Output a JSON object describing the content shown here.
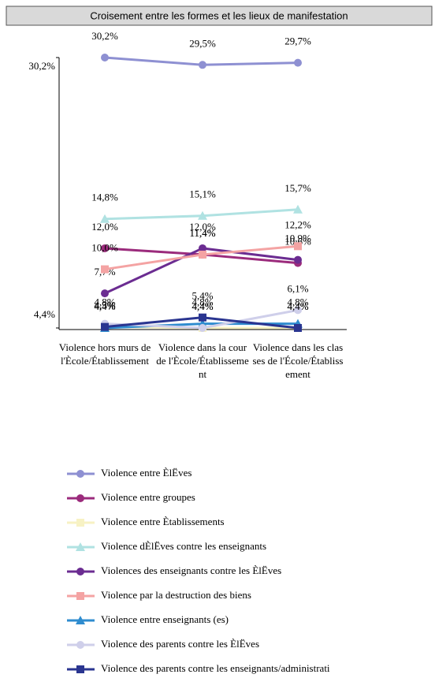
{
  "chart_data": {
    "type": "line",
    "title": "Croisement entre les formes et les lieux de manifestation",
    "categories": [
      "Violence hors murs de l'Ècole/Établissement",
      "Violence dans la cour de l'Ècole/Établissement",
      "Violence dans les classes de l'École/Établissement"
    ],
    "ylim": [
      4.4,
      30.2
    ],
    "yticks": [
      {
        "value": 4.4,
        "label": "4,4%"
      },
      {
        "value": 30.2,
        "label": "30,2%"
      }
    ],
    "legend": "bottom",
    "series": [
      {
        "name": "Violence entre ÈlËves",
        "color": "#8e90d2",
        "marker": "circle",
        "values": [
          30.2,
          29.5,
          29.7
        ],
        "value_labels": [
          "30,2%",
          "29,5%",
          "29,7%"
        ]
      },
      {
        "name": "Violence entre groupes",
        "color": "#9b2b7c",
        "marker": "circle",
        "values": [
          12.0,
          11.4,
          10.6
        ],
        "value_labels": [
          "12,0%",
          "11,4%",
          "10,6%"
        ]
      },
      {
        "name": "Violence entre Ètablissements",
        "color": "#f7f2c4",
        "marker": "square",
        "values": [
          4.5,
          4.4,
          4.4
        ],
        "value_labels": [
          "4,5%",
          "4,4%",
          "4,4%"
        ]
      },
      {
        "name": "Violence dÈlËves contre les enseignants",
        "color": "#b0e2e2",
        "marker": "triangle",
        "values": [
          14.8,
          15.1,
          15.7
        ],
        "value_labels": [
          "14,8%",
          "15,1%",
          "15,7%"
        ]
      },
      {
        "name": "Violences des enseignants contre les ÈlËves",
        "color": "#6b2c91",
        "marker": "circle",
        "values": [
          7.7,
          12.0,
          10.9
        ],
        "value_labels": [
          "7,7%",
          "12,0%",
          "10,9%"
        ]
      },
      {
        "name": "Violence par la destruction des biens",
        "color": "#f4a3a3",
        "marker": "square",
        "values": [
          10.0,
          11.4,
          12.2
        ],
        "value_labels": [
          "10,0%",
          "11,4%",
          "12,2%"
        ]
      },
      {
        "name": "Violence entre enseignants (es)",
        "color": "#2f8ccf",
        "marker": "triangle",
        "values": [
          4.4,
          4.8,
          4.8
        ],
        "value_labels": [
          "4,4%",
          "4,8%",
          "4,8%"
        ]
      },
      {
        "name": "Violence des parents contre les ÈlËves",
        "color": "#cfcfea",
        "marker": "circle",
        "values": [
          4.8,
          4.4,
          6.1
        ],
        "value_labels": [
          "4,8%",
          "4,4%",
          "6,1%"
        ]
      },
      {
        "name": "Violence des parents contre les enseignants/administrati",
        "color": "#2a3590",
        "marker": "square",
        "values": [
          4.5,
          5.4,
          4.4
        ],
        "value_labels": [
          "4,5%",
          "5,4%",
          "4,4%"
        ]
      }
    ]
  }
}
